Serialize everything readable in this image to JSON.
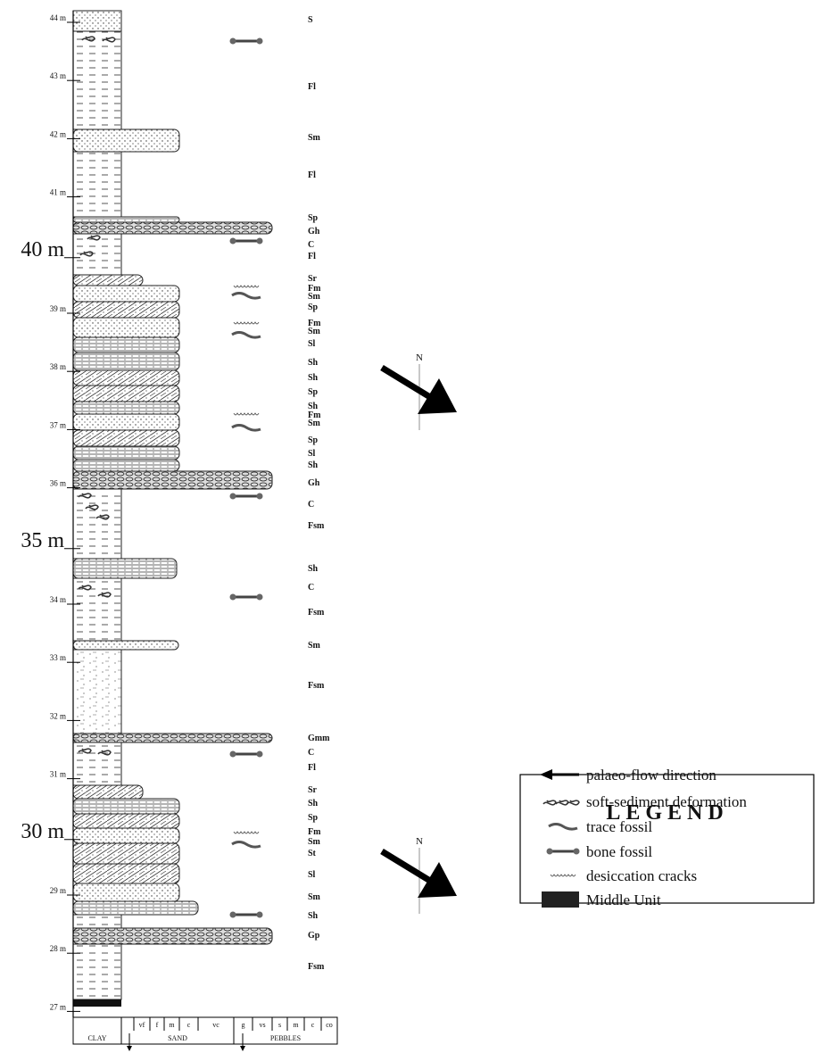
{
  "depth_labels": [
    "44 m",
    "43 m",
    "42 m",
    "41 m",
    "40 m",
    "39 m",
    "38 m",
    "37 m",
    "36 m",
    "35 m",
    "34 m",
    "33 m",
    "32 m",
    "31 m",
    "30 m",
    "29 m",
    "28 m",
    "27 m"
  ],
  "facies": [
    "S",
    "Fl",
    "Sm",
    "Fl",
    "Sp",
    "Gh",
    "C",
    "Fl",
    "Sr",
    "Fm",
    "Sm",
    "Sp",
    "Fm",
    "Sm",
    "Sl",
    "Sh",
    "Sh",
    "Sp",
    "Sh",
    "Fm",
    "Sm",
    "Sp",
    "Sl",
    "Sh",
    "Gh",
    "C",
    "Fsm",
    "Sh",
    "C",
    "Fsm",
    "Sm",
    "Fsm",
    "Gmm",
    "C",
    "Fl",
    "Sr",
    "Sh",
    "Sp",
    "Fm",
    "Sm",
    "St",
    "Sl",
    "Sm",
    "Sh",
    "Gp",
    "Fsm"
  ],
  "grain_size": {
    "ticks": [
      "vf",
      "f",
      "m",
      "c",
      "vc",
      "g",
      "vs",
      "s",
      "m",
      "c",
      "co"
    ],
    "groups": [
      "CLAY",
      "SAND",
      "PEBBLES"
    ]
  },
  "north": [
    "N",
    "N"
  ],
  "legend": {
    "title": "LEGEND",
    "items": [
      "palaeo-flow direction",
      "soft-sediment deformation",
      "trace fossil",
      "bone fossil",
      "desiccation cracks",
      "Middle Unit"
    ]
  }
}
